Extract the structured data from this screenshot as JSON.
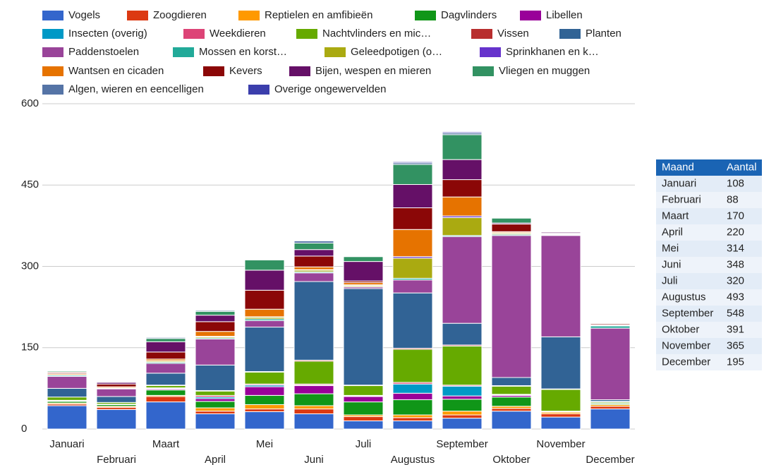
{
  "chart_data": {
    "type": "stacked-bar",
    "categories": [
      "Januari",
      "Februari",
      "Maart",
      "April",
      "Mei",
      "Juni",
      "Juli",
      "Augustus",
      "September",
      "Oktober",
      "November",
      "December"
    ],
    "ylim": [
      0,
      600
    ],
    "yticks": [
      0,
      150,
      300,
      450,
      600
    ],
    "grid": true,
    "legend": "top",
    "series": [
      {
        "name": "Vogels",
        "color": "#3366cc",
        "values": [
          43,
          36,
          50,
          28,
          32,
          28,
          15,
          15,
          20,
          33,
          22,
          37
        ]
      },
      {
        "name": "Zoogdieren",
        "color": "#dc3912",
        "values": [
          3,
          4,
          10,
          5,
          5,
          9,
          8,
          6,
          6,
          5,
          6,
          5
        ]
      },
      {
        "name": "Reptielen en amfibieën",
        "color": "#ff9900",
        "values": [
          2,
          2,
          2,
          6,
          8,
          6,
          3,
          5,
          7,
          4,
          3,
          3
        ]
      },
      {
        "name": "Dagvlinders",
        "color": "#109618",
        "values": [
          3,
          3,
          10,
          12,
          17,
          22,
          24,
          28,
          22,
          17,
          1,
          2
        ]
      },
      {
        "name": "Libellen",
        "color": "#990099",
        "values": [
          1,
          0,
          2,
          5,
          16,
          15,
          10,
          12,
          6,
          3,
          0,
          0
        ]
      },
      {
        "name": "Insecten (overig)",
        "color": "#0099c6",
        "values": [
          0,
          0,
          1,
          3,
          3,
          1,
          1,
          17,
          18,
          1,
          0,
          0
        ]
      },
      {
        "name": "Weekdieren",
        "color": "#dd4477",
        "values": [
          1,
          1,
          1,
          3,
          2,
          2,
          1,
          3,
          2,
          1,
          1,
          1
        ]
      },
      {
        "name": "Nachtvlinders en mic…",
        "color": "#66aa00",
        "values": [
          6,
          3,
          4,
          8,
          22,
          42,
          18,
          61,
          72,
          15,
          40,
          2
        ]
      },
      {
        "name": "Vissen",
        "color": "#b82e2e",
        "values": [
          0,
          0,
          1,
          1,
          1,
          2,
          1,
          2,
          2,
          1,
          1,
          1
        ]
      },
      {
        "name": "Planten",
        "color": "#316395",
        "values": [
          16,
          11,
          22,
          47,
          82,
          145,
          178,
          102,
          40,
          15,
          96,
          3
        ]
      },
      {
        "name": "Paddenstoelen",
        "color": "#994499",
        "values": [
          22,
          14,
          18,
          48,
          12,
          16,
          3,
          24,
          160,
          262,
          187,
          132
        ]
      },
      {
        "name": "Mossen en korst…",
        "color": "#22aa99",
        "values": [
          2,
          1,
          2,
          2,
          3,
          2,
          1,
          3,
          2,
          2,
          1,
          4
        ]
      },
      {
        "name": "Geleedpotigen (o…",
        "color": "#aaaa11",
        "values": [
          1,
          1,
          2,
          2,
          3,
          3,
          2,
          37,
          33,
          2,
          1,
          1
        ]
      },
      {
        "name": "Sprinkhanen en k…",
        "color": "#6633cc",
        "values": [
          0,
          0,
          1,
          1,
          1,
          1,
          1,
          3,
          3,
          1,
          0,
          0
        ]
      },
      {
        "name": "Wantsen en cicaden",
        "color": "#e67300",
        "values": [
          2,
          2,
          3,
          9,
          14,
          5,
          4,
          50,
          35,
          2,
          1,
          1
        ]
      },
      {
        "name": "Kevers",
        "color": "#8b0707",
        "values": [
          2,
          5,
          13,
          18,
          35,
          20,
          3,
          40,
          32,
          14,
          1,
          2
        ]
      },
      {
        "name": "Bijen, wespen en mieren",
        "color": "#651067",
        "values": [
          1,
          3,
          19,
          12,
          37,
          12,
          36,
          43,
          37,
          2,
          2,
          1
        ]
      },
      {
        "name": "Vliegen en muggen",
        "color": "#329262",
        "values": [
          2,
          1,
          6,
          7,
          19,
          12,
          9,
          37,
          46,
          9,
          1,
          0
        ]
      },
      {
        "name": "Algen, wieren en eencelligen",
        "color": "#5574a6",
        "values": [
          1,
          1,
          2,
          2,
          1,
          4,
          1,
          3,
          3,
          1,
          1,
          0
        ]
      },
      {
        "name": "Overige ongewervelden",
        "color": "#3b3eac",
        "values": [
          0,
          0,
          1,
          1,
          1,
          1,
          1,
          2,
          2,
          1,
          0,
          0
        ]
      }
    ]
  },
  "table": {
    "header": [
      "Maand",
      "Aantal"
    ],
    "rows": [
      [
        "Januari",
        "108"
      ],
      [
        "Februari",
        "88"
      ],
      [
        "Maart",
        "170"
      ],
      [
        "April",
        "220"
      ],
      [
        "Mei",
        "314"
      ],
      [
        "Juni",
        "348"
      ],
      [
        "Juli",
        "320"
      ],
      [
        "Augustus",
        "493"
      ],
      [
        "September",
        "548"
      ],
      [
        "Oktober",
        "391"
      ],
      [
        "November",
        "365"
      ],
      [
        "December",
        "195"
      ]
    ]
  }
}
